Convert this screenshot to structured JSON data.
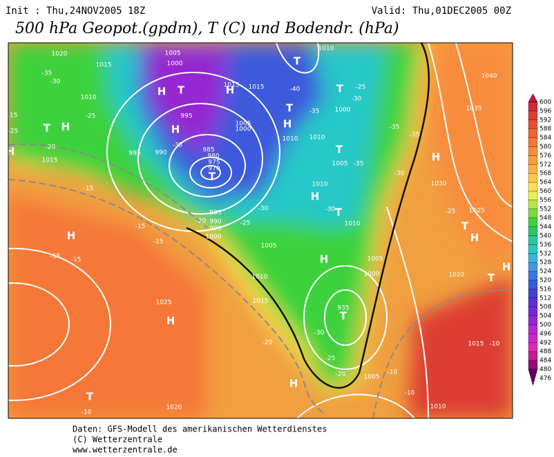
{
  "header": {
    "init": "Init : Thu,24NOV2005 18Z",
    "valid": "Valid: Thu,01DEC2005 00Z",
    "title": "500 hPa Geopot.(gpdm), T (C) und Bodendr. (hPa)"
  },
  "colorbar": {
    "levels": [
      600,
      596,
      592,
      588,
      584,
      580,
      576,
      572,
      568,
      564,
      560,
      556,
      552,
      548,
      544,
      540,
      536,
      532,
      528,
      524,
      520,
      516,
      512,
      508,
      504,
      500,
      496,
      492,
      488,
      484,
      480,
      476
    ],
    "colors": [
      "#c8143c",
      "#d2283c",
      "#dc3c32",
      "#e65032",
      "#f06432",
      "#f57837",
      "#f88c3c",
      "#fa9c3c",
      "#fcb040",
      "#fcc848",
      "#fce050",
      "#e6f050",
      "#b4e646",
      "#78dc3c",
      "#3cd23c",
      "#28c864",
      "#28c8a0",
      "#28c8c8",
      "#3cb4dc",
      "#4696e6",
      "#3c78e6",
      "#3c5adc",
      "#4040d2",
      "#5a32d2",
      "#7828d2",
      "#9628d2",
      "#b428d2",
      "#c828c8",
      "#dc28b4",
      "#c81e8c",
      "#960a78",
      "#640064"
    ]
  },
  "map": {
    "labels": [
      "1020",
      "1015",
      "1005",
      "1000",
      "-35",
      "-30",
      "1010",
      "-25",
      "T",
      "H",
      "H",
      "T",
      "H",
      "995",
      "990",
      "995",
      "-35",
      "985",
      "980",
      "975",
      "970",
      "T",
      "H",
      "1015",
      "1015",
      "1010",
      "T",
      "-40",
      "T",
      "-35",
      "1000",
      "T",
      "-25",
      "-30",
      "H",
      "1005",
      "1000",
      "1010",
      "1010",
      "T",
      "1005",
      "-35",
      "-30",
      "-35",
      "-35",
      "1010",
      "H",
      "-30",
      "T",
      "1010",
      "1040",
      "1035",
      "H",
      "1030",
      "-25",
      "1025",
      "T",
      "H",
      "H",
      "T",
      "1020",
      "1015",
      "-10",
      "-10",
      "1010",
      "-15",
      "-15",
      "-15",
      "H",
      "-15",
      "-15",
      "-20",
      "-25",
      "-30",
      "985",
      "990",
      "995",
      "1000",
      "1005",
      "1010",
      "H",
      "1005",
      "1000",
      "1015",
      "1025",
      "H",
      "935",
      "T",
      "-30",
      "-25",
      "-20",
      "1005",
      "-20",
      "H",
      "-10",
      "T",
      "-10",
      "1020",
      "-15",
      "-20",
      "1015",
      "-25",
      "H"
    ]
  },
  "footer": [
    "Daten: GFS-Modell des amerikanischen Wetterdienstes",
    "(C) Wetterzentrale",
    "www.wetterzentrale.de"
  ]
}
